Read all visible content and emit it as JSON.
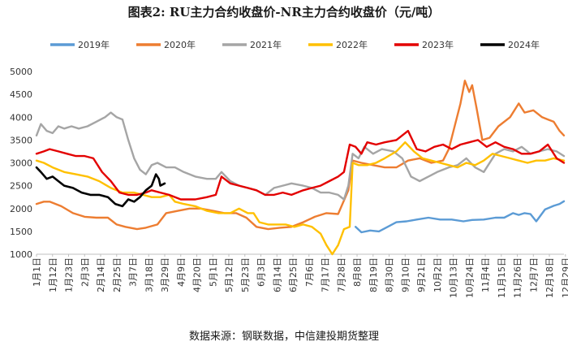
{
  "chart_data": {
    "type": "line",
    "title": "图表2: RU主力合约收盘价-NR主力合约收盘价（元/吨）",
    "source": "数据来源：钢联数据，中信建投期货整理",
    "ylim": [
      1000,
      5000
    ],
    "yticks": [
      "1000",
      "1500",
      "2000",
      "2500",
      "3000",
      "3500",
      "4000",
      "4500",
      "5000"
    ],
    "xticks": [
      "1月1日",
      "1月12日",
      "1月23日",
      "2月3日",
      "2月14日",
      "2月25日",
      "3月7日",
      "3月18日",
      "3月29日",
      "4月9日",
      "4月20日",
      "5月1日",
      "5月12日",
      "5月23日",
      "6月3日",
      "6月14日",
      "6月25日",
      "7月6日",
      "7月17日",
      "7月28日",
      "8月8日",
      "8月19日",
      "8月30日",
      "9月10日",
      "9月21日",
      "10月2日",
      "10月13日",
      "10月24日",
      "11月4日",
      "11月15日",
      "11月26日",
      "12月7日",
      "12月18日",
      "12月29日"
    ],
    "x_unit": "day of year (1 = 1月1日, 363 = 12月29日)",
    "grid": false,
    "legend_position": "top",
    "series": [
      {
        "name": "2019年",
        "color": "#5b9bd5",
        "points": [
          [
            220,
            1600
          ],
          [
            224,
            1480
          ],
          [
            230,
            1520
          ],
          [
            236,
            1500
          ],
          [
            242,
            1600
          ],
          [
            248,
            1700
          ],
          [
            255,
            1720
          ],
          [
            262,
            1760
          ],
          [
            270,
            1800
          ],
          [
            278,
            1760
          ],
          [
            286,
            1760
          ],
          [
            294,
            1720
          ],
          [
            300,
            1750
          ],
          [
            308,
            1760
          ],
          [
            316,
            1800
          ],
          [
            322,
            1800
          ],
          [
            328,
            1900
          ],
          [
            332,
            1860
          ],
          [
            336,
            1900
          ],
          [
            340,
            1880
          ],
          [
            344,
            1720
          ],
          [
            350,
            1980
          ],
          [
            356,
            2060
          ],
          [
            360,
            2100
          ],
          [
            363,
            2160
          ]
        ]
      },
      {
        "name": "2020年",
        "color": "#ed7d31",
        "points": [
          [
            1,
            2100
          ],
          [
            6,
            2150
          ],
          [
            10,
            2150
          ],
          [
            18,
            2050
          ],
          [
            26,
            1900
          ],
          [
            34,
            1820
          ],
          [
            42,
            1800
          ],
          [
            50,
            1800
          ],
          [
            56,
            1650
          ],
          [
            62,
            1600
          ],
          [
            70,
            1550
          ],
          [
            76,
            1580
          ],
          [
            84,
            1650
          ],
          [
            90,
            1900
          ],
          [
            98,
            1950
          ],
          [
            106,
            2000
          ],
          [
            114,
            2000
          ],
          [
            122,
            1950
          ],
          [
            130,
            1900
          ],
          [
            138,
            1900
          ],
          [
            145,
            1800
          ],
          [
            152,
            1600
          ],
          [
            160,
            1550
          ],
          [
            168,
            1580
          ],
          [
            176,
            1600
          ],
          [
            184,
            1700
          ],
          [
            192,
            1820
          ],
          [
            200,
            1900
          ],
          [
            208,
            1880
          ],
          [
            215,
            2400
          ],
          [
            218,
            3050
          ],
          [
            224,
            3000
          ],
          [
            232,
            2950
          ],
          [
            240,
            2900
          ],
          [
            248,
            2900
          ],
          [
            256,
            3050
          ],
          [
            264,
            3100
          ],
          [
            272,
            3000
          ],
          [
            280,
            3050
          ],
          [
            284,
            3300
          ],
          [
            288,
            3800
          ],
          [
            292,
            4300
          ],
          [
            295,
            4800
          ],
          [
            298,
            4550
          ],
          [
            300,
            4700
          ],
          [
            303,
            4200
          ],
          [
            307,
            3500
          ],
          [
            312,
            3550
          ],
          [
            318,
            3800
          ],
          [
            326,
            4000
          ],
          [
            332,
            4300
          ],
          [
            336,
            4100
          ],
          [
            342,
            4150
          ],
          [
            348,
            4000
          ],
          [
            352,
            3950
          ],
          [
            356,
            3900
          ],
          [
            360,
            3700
          ],
          [
            363,
            3600
          ]
        ]
      },
      {
        "name": "2021年",
        "color": "#a5a5a5",
        "points": [
          [
            1,
            3600
          ],
          [
            4,
            3850
          ],
          [
            8,
            3700
          ],
          [
            12,
            3650
          ],
          [
            16,
            3800
          ],
          [
            20,
            3750
          ],
          [
            25,
            3800
          ],
          [
            30,
            3750
          ],
          [
            36,
            3800
          ],
          [
            42,
            3900
          ],
          [
            48,
            4000
          ],
          [
            52,
            4100
          ],
          [
            56,
            4000
          ],
          [
            60,
            3950
          ],
          [
            64,
            3500
          ],
          [
            68,
            3100
          ],
          [
            72,
            2850
          ],
          [
            76,
            2750
          ],
          [
            80,
            2950
          ],
          [
            84,
            3000
          ],
          [
            90,
            2900
          ],
          [
            96,
            2900
          ],
          [
            102,
            2800
          ],
          [
            110,
            2700
          ],
          [
            118,
            2650
          ],
          [
            124,
            2650
          ],
          [
            128,
            2800
          ],
          [
            134,
            2600
          ],
          [
            140,
            2500
          ],
          [
            146,
            2450
          ],
          [
            152,
            2400
          ],
          [
            158,
            2300
          ],
          [
            164,
            2450
          ],
          [
            170,
            2500
          ],
          [
            176,
            2550
          ],
          [
            184,
            2500
          ],
          [
            190,
            2450
          ],
          [
            196,
            2350
          ],
          [
            202,
            2350
          ],
          [
            208,
            2300
          ],
          [
            212,
            2200
          ],
          [
            215,
            2500
          ],
          [
            218,
            3200
          ],
          [
            222,
            3100
          ],
          [
            226,
            3350
          ],
          [
            232,
            3200
          ],
          [
            238,
            3300
          ],
          [
            246,
            3250
          ],
          [
            252,
            3100
          ],
          [
            258,
            2700
          ],
          [
            264,
            2600
          ],
          [
            270,
            2700
          ],
          [
            276,
            2800
          ],
          [
            284,
            2900
          ],
          [
            290,
            2950
          ],
          [
            296,
            3100
          ],
          [
            302,
            2900
          ],
          [
            308,
            2800
          ],
          [
            316,
            3200
          ],
          [
            322,
            3300
          ],
          [
            328,
            3250
          ],
          [
            334,
            3350
          ],
          [
            340,
            3200
          ],
          [
            346,
            3250
          ],
          [
            352,
            3300
          ],
          [
            358,
            3250
          ],
          [
            363,
            3150
          ]
        ]
      },
      {
        "name": "2022年",
        "color": "#ffc000",
        "points": [
          [
            1,
            3050
          ],
          [
            6,
            3000
          ],
          [
            12,
            2900
          ],
          [
            20,
            2800
          ],
          [
            28,
            2750
          ],
          [
            36,
            2700
          ],
          [
            44,
            2600
          ],
          [
            52,
            2450
          ],
          [
            60,
            2350
          ],
          [
            68,
            2350
          ],
          [
            74,
            2300
          ],
          [
            80,
            2250
          ],
          [
            86,
            2250
          ],
          [
            92,
            2300
          ],
          [
            96,
            2150
          ],
          [
            102,
            2100
          ],
          [
            110,
            2050
          ],
          [
            118,
            1950
          ],
          [
            126,
            1900
          ],
          [
            134,
            1900
          ],
          [
            140,
            2000
          ],
          [
            146,
            1900
          ],
          [
            150,
            1900
          ],
          [
            154,
            1700
          ],
          [
            160,
            1650
          ],
          [
            166,
            1650
          ],
          [
            172,
            1650
          ],
          [
            178,
            1600
          ],
          [
            184,
            1650
          ],
          [
            190,
            1600
          ],
          [
            196,
            1450
          ],
          [
            200,
            1200
          ],
          [
            204,
            1000
          ],
          [
            208,
            1200
          ],
          [
            212,
            1550
          ],
          [
            216,
            1600
          ],
          [
            218,
            3000
          ],
          [
            222,
            2950
          ],
          [
            228,
            2950
          ],
          [
            234,
            3000
          ],
          [
            240,
            3100
          ],
          [
            248,
            3250
          ],
          [
            254,
            3450
          ],
          [
            260,
            3250
          ],
          [
            266,
            3100
          ],
          [
            272,
            3050
          ],
          [
            278,
            3000
          ],
          [
            284,
            2950
          ],
          [
            290,
            2900
          ],
          [
            296,
            3000
          ],
          [
            302,
            2950
          ],
          [
            308,
            3050
          ],
          [
            314,
            3200
          ],
          [
            320,
            3150
          ],
          [
            326,
            3100
          ],
          [
            332,
            3050
          ],
          [
            338,
            3000
          ],
          [
            344,
            3050
          ],
          [
            350,
            3050
          ],
          [
            356,
            3100
          ],
          [
            363,
            3050
          ]
        ]
      },
      {
        "name": "2023年",
        "color": "#e30000",
        "points": [
          [
            1,
            3200
          ],
          [
            6,
            3250
          ],
          [
            10,
            3300
          ],
          [
            16,
            3250
          ],
          [
            22,
            3200
          ],
          [
            28,
            3150
          ],
          [
            34,
            3150
          ],
          [
            40,
            3100
          ],
          [
            46,
            2800
          ],
          [
            52,
            2600
          ],
          [
            58,
            2350
          ],
          [
            64,
            2300
          ],
          [
            70,
            2300
          ],
          [
            76,
            2350
          ],
          [
            80,
            2400
          ],
          [
            86,
            2350
          ],
          [
            92,
            2300
          ],
          [
            100,
            2200
          ],
          [
            110,
            2200
          ],
          [
            118,
            2250
          ],
          [
            124,
            2300
          ],
          [
            128,
            2700
          ],
          [
            134,
            2550
          ],
          [
            140,
            2500
          ],
          [
            146,
            2450
          ],
          [
            152,
            2400
          ],
          [
            158,
            2300
          ],
          [
            164,
            2300
          ],
          [
            170,
            2350
          ],
          [
            176,
            2300
          ],
          [
            184,
            2400
          ],
          [
            190,
            2450
          ],
          [
            196,
            2500
          ],
          [
            202,
            2600
          ],
          [
            208,
            2700
          ],
          [
            212,
            2800
          ],
          [
            216,
            3400
          ],
          [
            220,
            3350
          ],
          [
            224,
            3200
          ],
          [
            228,
            3450
          ],
          [
            234,
            3400
          ],
          [
            240,
            3450
          ],
          [
            248,
            3500
          ],
          [
            256,
            3700
          ],
          [
            262,
            3300
          ],
          [
            268,
            3250
          ],
          [
            274,
            3350
          ],
          [
            280,
            3400
          ],
          [
            286,
            3300
          ],
          [
            292,
            3400
          ],
          [
            298,
            3450
          ],
          [
            304,
            3500
          ],
          [
            310,
            3350
          ],
          [
            316,
            3450
          ],
          [
            322,
            3350
          ],
          [
            328,
            3300
          ],
          [
            334,
            3200
          ],
          [
            340,
            3200
          ],
          [
            346,
            3250
          ],
          [
            352,
            3400
          ],
          [
            358,
            3100
          ],
          [
            363,
            3000
          ]
        ]
      },
      {
        "name": "2024年",
        "color": "#000000",
        "points": [
          [
            1,
            2900
          ],
          [
            4,
            2800
          ],
          [
            8,
            2650
          ],
          [
            12,
            2700
          ],
          [
            16,
            2600
          ],
          [
            20,
            2500
          ],
          [
            26,
            2450
          ],
          [
            32,
            2350
          ],
          [
            38,
            2300
          ],
          [
            44,
            2300
          ],
          [
            50,
            2250
          ],
          [
            55,
            2100
          ],
          [
            60,
            2050
          ],
          [
            64,
            2200
          ],
          [
            68,
            2150
          ],
          [
            72,
            2250
          ],
          [
            76,
            2400
          ],
          [
            80,
            2500
          ],
          [
            83,
            2750
          ],
          [
            85,
            2650
          ],
          [
            86,
            2500
          ],
          [
            89,
            2550
          ]
        ]
      }
    ]
  }
}
